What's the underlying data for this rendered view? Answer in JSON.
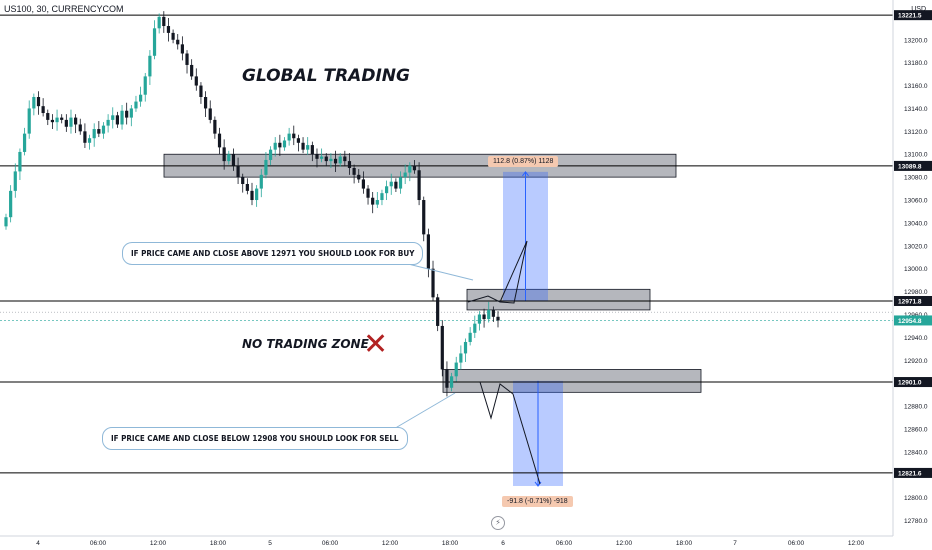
{
  "header": {
    "symbol": "US100, 30, CURRENCYCOM",
    "currency": "USD"
  },
  "annotations": {
    "title": "GLOBAL TRADING",
    "no_trade": "NO TRADING ZONE",
    "cross_glyph": "✕",
    "buy_note": "IF PRICE CAME AND CLOSE ABOVE 12971 YOU SHOULD LOOK FOR BUY",
    "sell_note": "IF PRICE CAME AND CLOSE BELOW 12908 YOU SHOULD LOOK FOR SELL",
    "buy_measure": "112.8 (0.87%) 1128",
    "sell_measure": "-91.8 (-0.71%) -918",
    "bolt_icon": "lightning-icon"
  },
  "colors": {
    "up": "#26a69a",
    "down": "#131722",
    "zone_fill": "#787b86",
    "target_fill": "#2962ff",
    "level_line": "#000000",
    "buy_measure_bg": "#f5c9b0",
    "sell_measure_bg": "#f5c9b0"
  },
  "chart_data": {
    "type": "candlestick",
    "y_axis": {
      "range": [
        12770,
        13226
      ],
      "ticks": [
        12780,
        12800,
        12820,
        12840,
        12860,
        12880,
        12900,
        12920,
        12940,
        12960,
        12980,
        13000,
        13020,
        13040,
        13060,
        13080,
        13100,
        13120,
        13140,
        13160,
        13180,
        13200,
        13220
      ],
      "tick_labels": [
        "12780.0",
        "12800.0",
        "12820.0",
        "12840.0",
        "12860.0",
        "12880.0",
        "12900.0",
        "12920.0",
        "12940.0",
        "12960.0",
        "12980.0",
        "13000.0",
        "13020.0",
        "13040.0",
        "13060.0",
        "13080.0",
        "13100.0",
        "13120.0",
        "13140.0",
        "13160.0",
        "13180.0",
        "13200.0",
        "13220.0"
      ]
    },
    "x_axis": {
      "labels": [
        "4",
        "06:00",
        "12:00",
        "18:00",
        "5",
        "06:00",
        "12:00",
        "18:00",
        "6",
        "06:00",
        "12:00",
        "18:00",
        "7",
        "06:00",
        "12:00"
      ]
    },
    "price_labels": [
      {
        "value": 13221.5,
        "text": "13221.5"
      },
      {
        "value": 13089.8,
        "text": "13089.8"
      },
      {
        "value": 12971.8,
        "text": "12971.8"
      },
      {
        "value": 12954.8,
        "text": "12954.8",
        "current": true
      },
      {
        "value": 12901.0,
        "text": "12901.0"
      },
      {
        "value": 12821.6,
        "text": "12821.6"
      }
    ],
    "levels": [
      13221.5,
      13089.8,
      12971.8,
      12901.0,
      12821.6
    ],
    "zones": [
      {
        "top": 13100,
        "bottom": 13080
      },
      {
        "top": 12982,
        "bottom": 12964
      },
      {
        "top": 12912,
        "bottom": 12892
      }
    ],
    "targets": [
      {
        "direction": "up",
        "from": 12971.8,
        "to": 13084.6
      },
      {
        "direction": "down",
        "from": 12902,
        "to": 12810.2
      }
    ],
    "candles_close": [
      13045,
      13068,
      13085,
      13102,
      13118,
      13140,
      13150,
      13142,
      13136,
      13130,
      13128,
      13132,
      13130,
      13124,
      13132,
      13126,
      13120,
      13110,
      13114,
      13122,
      13118,
      13125,
      13130,
      13134,
      13126,
      13138,
      13132,
      13140,
      13146,
      13152,
      13168,
      13186,
      13210,
      13220,
      13212,
      13206,
      13200,
      13196,
      13188,
      13178,
      13168,
      13160,
      13150,
      13140,
      13130,
      13118,
      13106,
      13094,
      13100,
      13090,
      13080,
      13074,
      13068,
      13060,
      13070,
      13082,
      13095,
      13104,
      13110,
      13106,
      13112,
      13118,
      13114,
      13110,
      13104,
      13108,
      13100,
      13096,
      13098,
      13094,
      13096,
      13092,
      13098,
      13094,
      13088,
      13082,
      13078,
      13070,
      13062,
      13056,
      13060,
      13066,
      13072,
      13076,
      13070,
      13080,
      13084,
      13090,
      13086,
      13060,
      13030,
      13000,
      12975,
      12950,
      12912,
      12896,
      12906,
      12918,
      12926,
      12936,
      12944,
      12952,
      12960,
      12956,
      12964,
      12958,
      12954.8
    ]
  }
}
